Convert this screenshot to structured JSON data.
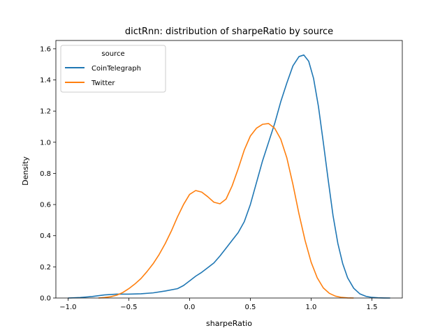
{
  "chart_data": {
    "type": "line",
    "title": "dictRnn: distribution of sharpeRatio by source",
    "xlabel": "sharpeRatio",
    "ylabel": "Density",
    "xlim": [
      -1.1,
      1.75
    ],
    "ylim": [
      0,
      1.6533
    ],
    "x_ticks": [
      -1.0,
      -0.5,
      0.0,
      0.5,
      1.0,
      1.5
    ],
    "x_tick_labels": [
      "−1.0",
      "−0.5",
      "0.0",
      "0.5",
      "1.0",
      "1.5"
    ],
    "y_ticks": [
      0,
      0.2,
      0.4,
      0.6,
      0.8,
      1.0,
      1.2,
      1.4,
      1.6
    ],
    "y_tick_labels": [
      "0.0",
      "0.2",
      "0.4",
      "0.6",
      "0.8",
      "1.0",
      "1.2",
      "1.4",
      "1.6"
    ],
    "grid": false,
    "legend": {
      "title": "source",
      "placement": "top-left"
    },
    "series": [
      {
        "name": "CoinTelegraph",
        "color": "#1f77b4",
        "points": [
          [
            -1.0,
            0.0
          ],
          [
            -0.9,
            0.003
          ],
          [
            -0.8,
            0.01
          ],
          [
            -0.7,
            0.02
          ],
          [
            -0.6,
            0.025
          ],
          [
            -0.5,
            0.025
          ],
          [
            -0.4,
            0.027
          ],
          [
            -0.3,
            0.033
          ],
          [
            -0.2,
            0.045
          ],
          [
            -0.1,
            0.06
          ],
          [
            -0.05,
            0.08
          ],
          [
            0.0,
            0.11
          ],
          [
            0.05,
            0.14
          ],
          [
            0.1,
            0.165
          ],
          [
            0.15,
            0.195
          ],
          [
            0.2,
            0.225
          ],
          [
            0.25,
            0.27
          ],
          [
            0.3,
            0.32
          ],
          [
            0.35,
            0.37
          ],
          [
            0.4,
            0.42
          ],
          [
            0.45,
            0.49
          ],
          [
            0.5,
            0.6
          ],
          [
            0.55,
            0.74
          ],
          [
            0.6,
            0.88
          ],
          [
            0.65,
            1.0
          ],
          [
            0.7,
            1.12
          ],
          [
            0.75,
            1.26
          ],
          [
            0.8,
            1.38
          ],
          [
            0.85,
            1.49
          ],
          [
            0.9,
            1.55
          ],
          [
            0.94,
            1.56
          ],
          [
            0.98,
            1.52
          ],
          [
            1.02,
            1.41
          ],
          [
            1.06,
            1.23
          ],
          [
            1.1,
            1.0
          ],
          [
            1.14,
            0.76
          ],
          [
            1.18,
            0.53
          ],
          [
            1.22,
            0.35
          ],
          [
            1.26,
            0.22
          ],
          [
            1.3,
            0.13
          ],
          [
            1.35,
            0.063
          ],
          [
            1.4,
            0.027
          ],
          [
            1.45,
            0.011
          ],
          [
            1.5,
            0.004
          ],
          [
            1.55,
            0.0015
          ],
          [
            1.6,
            0.0005
          ],
          [
            1.65,
            0.0
          ]
        ]
      },
      {
        "name": "Twitter",
        "color": "#ff7f0e",
        "points": [
          [
            -0.75,
            0.0
          ],
          [
            -0.7,
            0.003
          ],
          [
            -0.65,
            0.008
          ],
          [
            -0.6,
            0.018
          ],
          [
            -0.55,
            0.035
          ],
          [
            -0.5,
            0.06
          ],
          [
            -0.45,
            0.09
          ],
          [
            -0.4,
            0.125
          ],
          [
            -0.35,
            0.17
          ],
          [
            -0.3,
            0.22
          ],
          [
            -0.25,
            0.28
          ],
          [
            -0.2,
            0.35
          ],
          [
            -0.15,
            0.43
          ],
          [
            -0.1,
            0.52
          ],
          [
            -0.05,
            0.6
          ],
          [
            0.0,
            0.665
          ],
          [
            0.05,
            0.69
          ],
          [
            0.1,
            0.68
          ],
          [
            0.15,
            0.65
          ],
          [
            0.2,
            0.615
          ],
          [
            0.25,
            0.605
          ],
          [
            0.3,
            0.635
          ],
          [
            0.35,
            0.72
          ],
          [
            0.4,
            0.83
          ],
          [
            0.45,
            0.95
          ],
          [
            0.5,
            1.04
          ],
          [
            0.55,
            1.09
          ],
          [
            0.6,
            1.115
          ],
          [
            0.65,
            1.12
          ],
          [
            0.7,
            1.09
          ],
          [
            0.75,
            1.02
          ],
          [
            0.8,
            0.9
          ],
          [
            0.85,
            0.73
          ],
          [
            0.9,
            0.54
          ],
          [
            0.95,
            0.37
          ],
          [
            1.0,
            0.23
          ],
          [
            1.05,
            0.13
          ],
          [
            1.1,
            0.065
          ],
          [
            1.15,
            0.03
          ],
          [
            1.2,
            0.012
          ],
          [
            1.25,
            0.004
          ],
          [
            1.3,
            0.001
          ],
          [
            1.35,
            0.0
          ]
        ]
      }
    ]
  }
}
